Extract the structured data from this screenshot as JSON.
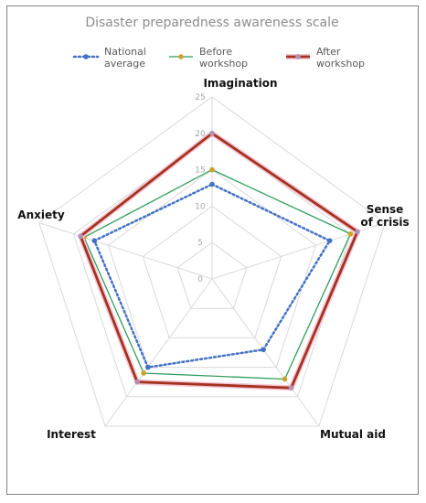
{
  "chart_data": {
    "type": "radar",
    "title": "Disaster preparedness awareness scale",
    "axes": [
      "Imagination",
      "Sense of crisis",
      "Mutual aid",
      "Interest",
      "Anxiety"
    ],
    "axis_label_lines": [
      [
        "Imagination"
      ],
      [
        "Sense",
        "of crisis"
      ],
      [
        "Mutual aid"
      ],
      [
        "Interest"
      ],
      [
        "Anxiety"
      ]
    ],
    "r_range": [
      0,
      25
    ],
    "ticks": [
      0,
      5,
      10,
      15,
      20,
      25
    ],
    "grid": true,
    "legend_position": "top",
    "series": [
      {
        "name": "National average",
        "name_lines": [
          "National",
          "average"
        ],
        "values": [
          13,
          17,
          12,
          15,
          17
        ],
        "color": "#4472c4",
        "line_style": "dotted",
        "marker_color": "#4472c4"
      },
      {
        "name": "Before workshop",
        "name_lines": [
          "Before",
          "workshop"
        ],
        "values": [
          15,
          20,
          17,
          16,
          18.5
        ],
        "color": "#2e9e5b",
        "line_style": "solid",
        "marker_color": "#c9a227"
      },
      {
        "name": "After workshop",
        "name_lines": [
          "After",
          "workshop"
        ],
        "values": [
          20,
          21,
          18.5,
          17.5,
          19
        ],
        "color": "#a5321f",
        "line_style": "solid-thick",
        "marker_color": "#b392b8"
      }
    ]
  }
}
